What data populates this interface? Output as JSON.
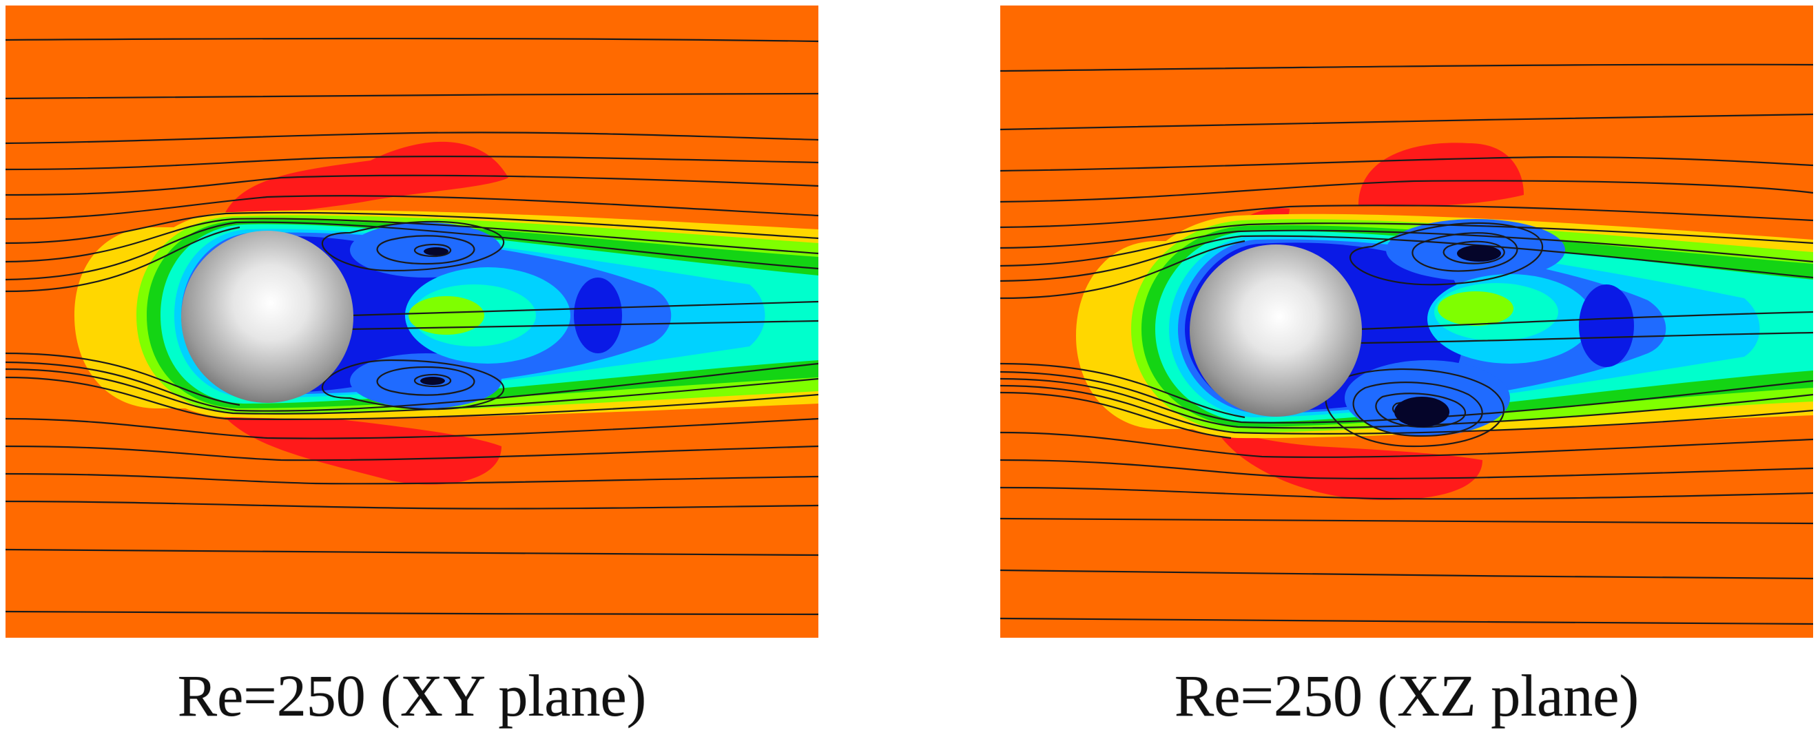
{
  "panels": [
    {
      "id": "xy",
      "caption": "Re=250 (XY plane)"
    },
    {
      "id": "xz",
      "caption": "Re=250 (XZ plane)"
    }
  ],
  "colors": {
    "background": "#ff6a00",
    "positive": "#ff1a1a",
    "level_yellow": "#ffd700",
    "level_lime": "#7fff00",
    "level_green": "#14d414",
    "level_cyan": "#00ffcc",
    "level_lightblue": "#00d2ff",
    "level_blue": "#1f6bff",
    "level_deep": "#0a1ae6",
    "streamline": "#1a1a1a",
    "sphere_light": "#ffffff",
    "sphere_dark": "#6e6e6e"
  }
}
